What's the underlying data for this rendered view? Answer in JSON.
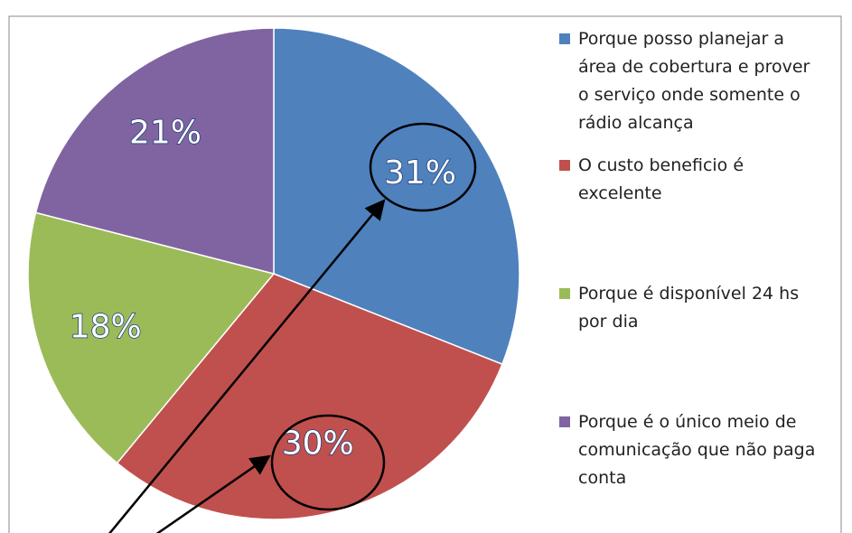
{
  "chart_data": {
    "type": "pie",
    "categories": [
      "Porque posso planejar a área de cobertura e prover o serviço onde somente o rádio alcança",
      "O custo beneficio é excelente",
      "Porque é disponível 24 hs por dia",
      "Porque é o único meio de comunicação que não paga conta"
    ],
    "values": [
      31,
      30,
      18,
      21
    ],
    "value_labels": [
      "31%",
      "30%",
      "18%",
      "21%"
    ],
    "colors": [
      "#4f81bd",
      "#c0504d",
      "#9bbb59",
      "#8064a2"
    ],
    "legend": "right"
  }
}
